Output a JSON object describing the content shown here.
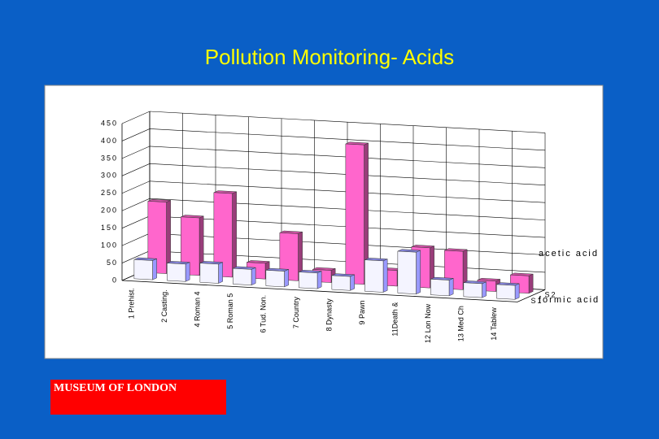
{
  "chart_data": {
    "type": "bar3d",
    "title": "Pollution Monitoring- Acids",
    "categories": [
      "1 Prehist.",
      "2 Casting.",
      "4 Roman 4",
      "5 Roman 5",
      "6 Tud. Non.",
      "7 Country",
      "8 Dynasty",
      "9 Pawn",
      "11Death &",
      "12 Lon Now",
      "13 Med Ch",
      "14 Tablew"
    ],
    "series": [
      {
        "name": "formic acid",
        "depth_label": "S1",
        "color": "#9999ff",
        "values": [
          55,
          50,
          55,
          45,
          45,
          45,
          40,
          90,
          120,
          45,
          40,
          40
        ]
      },
      {
        "name": "acetic acid",
        "depth_label": "S2",
        "color": "#ff66cc",
        "values": [
          205,
          165,
          240,
          45,
          135,
          35,
          400,
          45,
          115,
          110,
          30,
          50
        ]
      }
    ],
    "ylim": [
      0,
      450
    ],
    "yticks": [
      0,
      50,
      100,
      150,
      200,
      250,
      300,
      350,
      400,
      450
    ],
    "grid": true
  },
  "logo": "MUSEUM OF LONDON"
}
